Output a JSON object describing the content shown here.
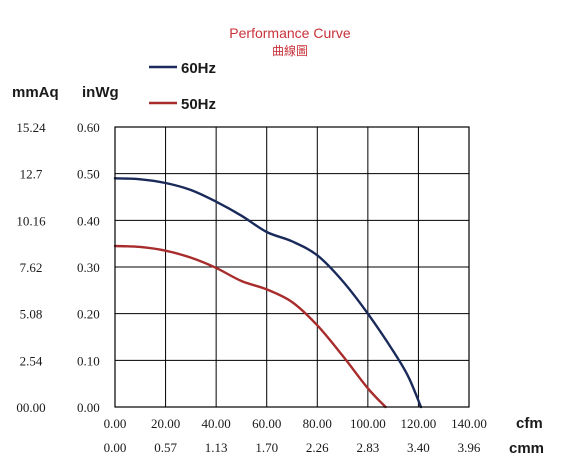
{
  "chart_data": {
    "type": "line",
    "title": "Performance Curve",
    "subtitle": "曲線圖",
    "ylabel_mmaq": "mmAq",
    "ylabel_inwg": "inWg",
    "xlabel_cfm": "cfm",
    "xlabel_cmm": "cmm",
    "xlim": [
      0,
      140
    ],
    "ylim": [
      0,
      0.6
    ],
    "grid": true,
    "legend_placement": "top-left",
    "x_ticks_cfm": [
      "0.00",
      "20.00",
      "40.00",
      "60.00",
      "80.00",
      "100.00",
      "120.00",
      "140.00"
    ],
    "x_ticks_cmm": [
      "0.00",
      "0.57",
      "1.13",
      "1.70",
      "2.26",
      "2.83",
      "3.40",
      "3.96"
    ],
    "y_ticks_inwg": [
      "0.00",
      "0.10",
      "0.20",
      "0.30",
      "0.40",
      "0.50",
      "0.60"
    ],
    "y_ticks_mmaq": [
      "00.00",
      "2.54",
      "5.08",
      "7.62",
      "10.16",
      "12.7",
      "15.24"
    ],
    "series": [
      {
        "name": "60Hz",
        "color": "#1a2a5a",
        "points": [
          [
            0,
            0.49
          ],
          [
            10,
            0.488
          ],
          [
            20,
            0.48
          ],
          [
            30,
            0.465
          ],
          [
            40,
            0.44
          ],
          [
            50,
            0.41
          ],
          [
            60,
            0.375
          ],
          [
            70,
            0.355
          ],
          [
            80,
            0.325
          ],
          [
            90,
            0.27
          ],
          [
            100,
            0.2
          ],
          [
            110,
            0.12
          ],
          [
            116,
            0.065
          ],
          [
            121,
            0.0
          ]
        ]
      },
      {
        "name": "50Hz",
        "color": "#a82c2c",
        "points": [
          [
            0,
            0.345
          ],
          [
            10,
            0.343
          ],
          [
            20,
            0.335
          ],
          [
            30,
            0.32
          ],
          [
            40,
            0.298
          ],
          [
            50,
            0.27
          ],
          [
            60,
            0.252
          ],
          [
            70,
            0.225
          ],
          [
            80,
            0.175
          ],
          [
            90,
            0.11
          ],
          [
            100,
            0.04
          ],
          [
            107,
            0.0
          ]
        ]
      }
    ]
  }
}
